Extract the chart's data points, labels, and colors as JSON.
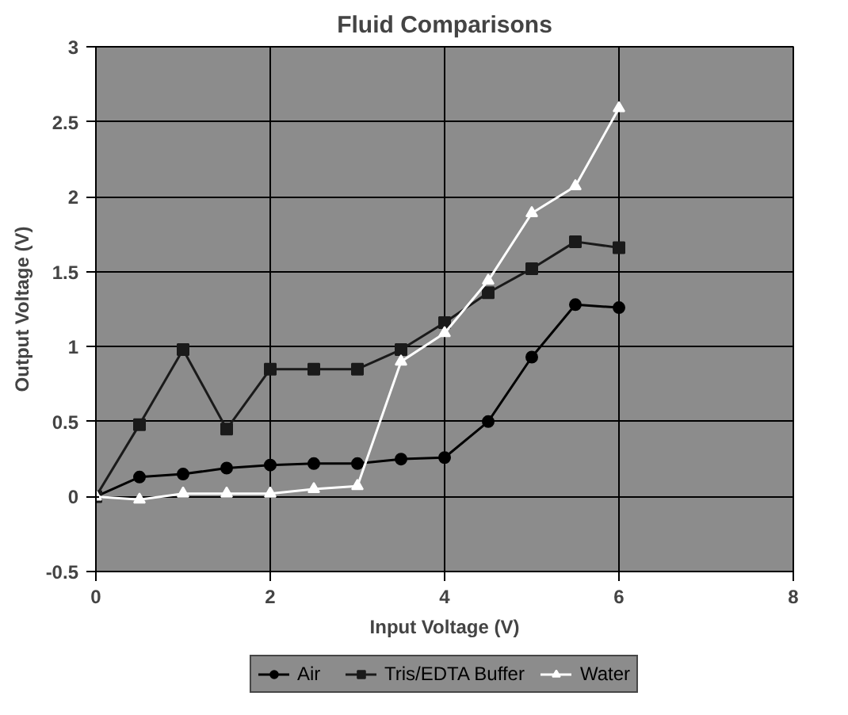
{
  "chart_data": {
    "type": "line",
    "title": "Fluid Comparisons",
    "xlabel": "Input Voltage (V)",
    "ylabel": "Output Voltage (V)",
    "x": [
      0,
      0.5,
      1,
      1.5,
      2,
      2.5,
      3,
      3.5,
      4,
      4.5,
      5,
      5.5,
      6
    ],
    "series": [
      {
        "name": "Air",
        "color": "#000000",
        "marker": "circle",
        "values": [
          0,
          0.13,
          0.15,
          0.19,
          0.21,
          0.22,
          0.22,
          0.25,
          0.26,
          0.5,
          0.93,
          1.28,
          1.26
        ]
      },
      {
        "name": "Tris/EDTA Buffer",
        "color": "#1a1a1a",
        "marker": "square",
        "values": [
          0,
          0.48,
          0.98,
          0.45,
          0.85,
          0.85,
          0.85,
          0.98,
          1.16,
          1.36,
          1.52,
          1.7,
          1.66
        ]
      },
      {
        "name": "Water",
        "color": "#ffffff",
        "marker": "triangle",
        "values": [
          0,
          -0.02,
          0.02,
          0.02,
          0.02,
          0.05,
          0.07,
          0.9,
          1.09,
          1.44,
          1.89,
          2.07,
          2.59
        ]
      }
    ],
    "xlim": [
      0,
      8
    ],
    "xticks": [
      0,
      2,
      4,
      6,
      8
    ],
    "ylim": [
      -0.5,
      3
    ],
    "yticks": [
      -0.5,
      0,
      0.5,
      1,
      1.5,
      2,
      2.5,
      3
    ],
    "grid": true,
    "legend": "bottom"
  }
}
